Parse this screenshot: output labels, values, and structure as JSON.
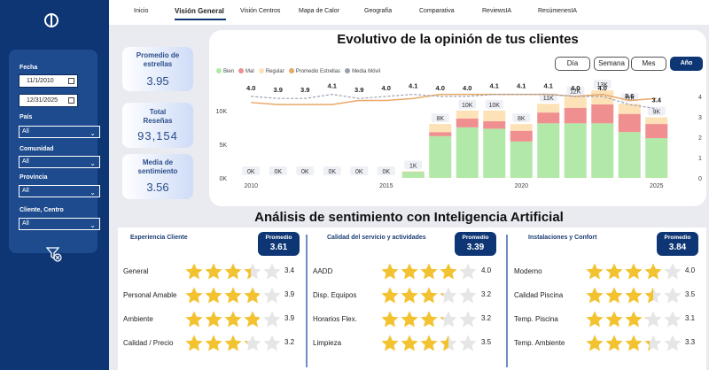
{
  "nav": {
    "items": [
      "Inicio",
      "Visión General",
      "Visión Centros",
      "Mapa de Calor",
      "Geografía",
      "Comparativa",
      "ReviewsIA",
      "ResúmenesIA"
    ],
    "active": "Visión General"
  },
  "filters": {
    "fecha_label": "Fecha",
    "date_from": "11/1/2010",
    "date_to": "12/31/2025",
    "pais_label": "País",
    "pais_value": "All",
    "comunidad_label": "Comunidad",
    "comunidad_value": "All",
    "provincia_label": "Provincia",
    "provincia_value": "All",
    "cliente_label": "Cliente, Centro",
    "cliente_value": "All"
  },
  "kpis": [
    {
      "label": "Promedio de estrellas",
      "value": "3.95"
    },
    {
      "label": "Total Reseñas",
      "value": "93,154"
    },
    {
      "label": "Media de sentimiento",
      "value": "3.56"
    }
  ],
  "chart_title": "Evolutivo de la opinión de tus clientes",
  "granularity": {
    "buttons": [
      "Día",
      "Semana",
      "Mes",
      "Año"
    ],
    "selected": "Año"
  },
  "chart_data": {
    "type": "bar",
    "x": [
      2010,
      2011,
      2012,
      2013,
      2014,
      2015,
      2016,
      2017,
      2018,
      2019,
      2020,
      2021,
      2022,
      2023,
      2024,
      2025
    ],
    "totals_labels": [
      "0K",
      "0K",
      "0K",
      "0K",
      "0K",
      "0K",
      "1K",
      "8K",
      "10K",
      "10K",
      "8K",
      "11K",
      "12K",
      "13K",
      "11K",
      "9K"
    ],
    "series": [
      {
        "name": "Bien",
        "color": "#b2e8a8",
        "values": [
          0,
          0,
          0,
          0,
          0,
          0,
          0.9,
          6.2,
          7.5,
          7.3,
          5.4,
          8.1,
          8.1,
          8.1,
          6.8,
          5.9
        ]
      },
      {
        "name": "Mal",
        "color": "#ef8f8f",
        "values": [
          0,
          0,
          0,
          0,
          0,
          0,
          0.03,
          0.6,
          1.3,
          1.1,
          1.6,
          1.6,
          2.3,
          2.8,
          2.7,
          2.1
        ]
      },
      {
        "name": "Regular",
        "color": "#fde2b8",
        "values": [
          0,
          0,
          0,
          0,
          0,
          0,
          0.07,
          1.2,
          1.2,
          1.6,
          1.0,
          1.3,
          1.6,
          2.1,
          1.5,
          1.0
        ]
      },
      {
        "name": "Promedio Estrellas",
        "color": "#e8a866",
        "values": [
          3.7,
          3.6,
          3.6,
          3.6,
          3.8,
          3.8,
          3.9,
          4.1,
          4.1,
          4.1,
          4.1,
          4.1,
          4.0,
          4.1,
          3.8,
          3.9
        ]
      },
      {
        "name": "Media Móvil",
        "color": "#9aa0b0",
        "values": [
          4.0,
          3.9,
          3.9,
          4.1,
          3.9,
          4.0,
          4.1,
          4.0,
          4.0,
          4.1,
          4.1,
          4.1,
          4.0,
          4.0,
          3.6,
          3.4
        ]
      }
    ],
    "rating_labels": [
      "4.0",
      "3.9",
      "3.9",
      "4.1",
      "3.9",
      "4.0",
      "4.1",
      "4.0",
      "4.0",
      "4.1",
      "4.1",
      "4.1",
      "4.0",
      "4.0",
      "3.6",
      "3.4"
    ],
    "y_left": {
      "ticks": [
        "0K",
        "5K",
        "10K"
      ],
      "range": [
        0,
        13
      ]
    },
    "y_right": {
      "ticks": [
        "0",
        "1",
        "2",
        "3",
        "4"
      ],
      "range": [
        0,
        4.3
      ]
    },
    "x_ticks": [
      "2010",
      "2015",
      "2020",
      "2025"
    ]
  },
  "sentiment_title": "Análisis de sentimiento con Inteligencia Artificial",
  "avg_label": "Promedio",
  "sentiment": [
    {
      "title": "Experiencia Cliente",
      "avg": "3.61",
      "rows": [
        {
          "label": "General",
          "value": "3.4"
        },
        {
          "label": "Personal Amable",
          "value": "3.9"
        },
        {
          "label": "Ambiente",
          "value": "3.9"
        },
        {
          "label": "Calidad / Precio",
          "value": "3.2"
        }
      ]
    },
    {
      "title": "Calidad del servicio y actividades",
      "avg": "3.39",
      "rows": [
        {
          "label": "AADD",
          "value": "4.0"
        },
        {
          "label": "Disp. Equipos",
          "value": "3.2"
        },
        {
          "label": "Horarios Flex.",
          "value": "3.2"
        },
        {
          "label": "Limpieza",
          "value": "3.5"
        }
      ]
    },
    {
      "title": "Instalaciones y Confort",
      "avg": "3.84",
      "rows": [
        {
          "label": "Moderno",
          "value": "4.0"
        },
        {
          "label": "Calidad Piscina",
          "value": "3.5"
        },
        {
          "label": "Temp. Piscina",
          "value": "3.1"
        },
        {
          "label": "Temp. Ambiente",
          "value": "3.3"
        }
      ]
    }
  ],
  "icons": {
    "logo": "logo-icon",
    "calendar": "calendar-icon",
    "clear_filters": "clear-filter-icon",
    "star": "star-icon"
  }
}
